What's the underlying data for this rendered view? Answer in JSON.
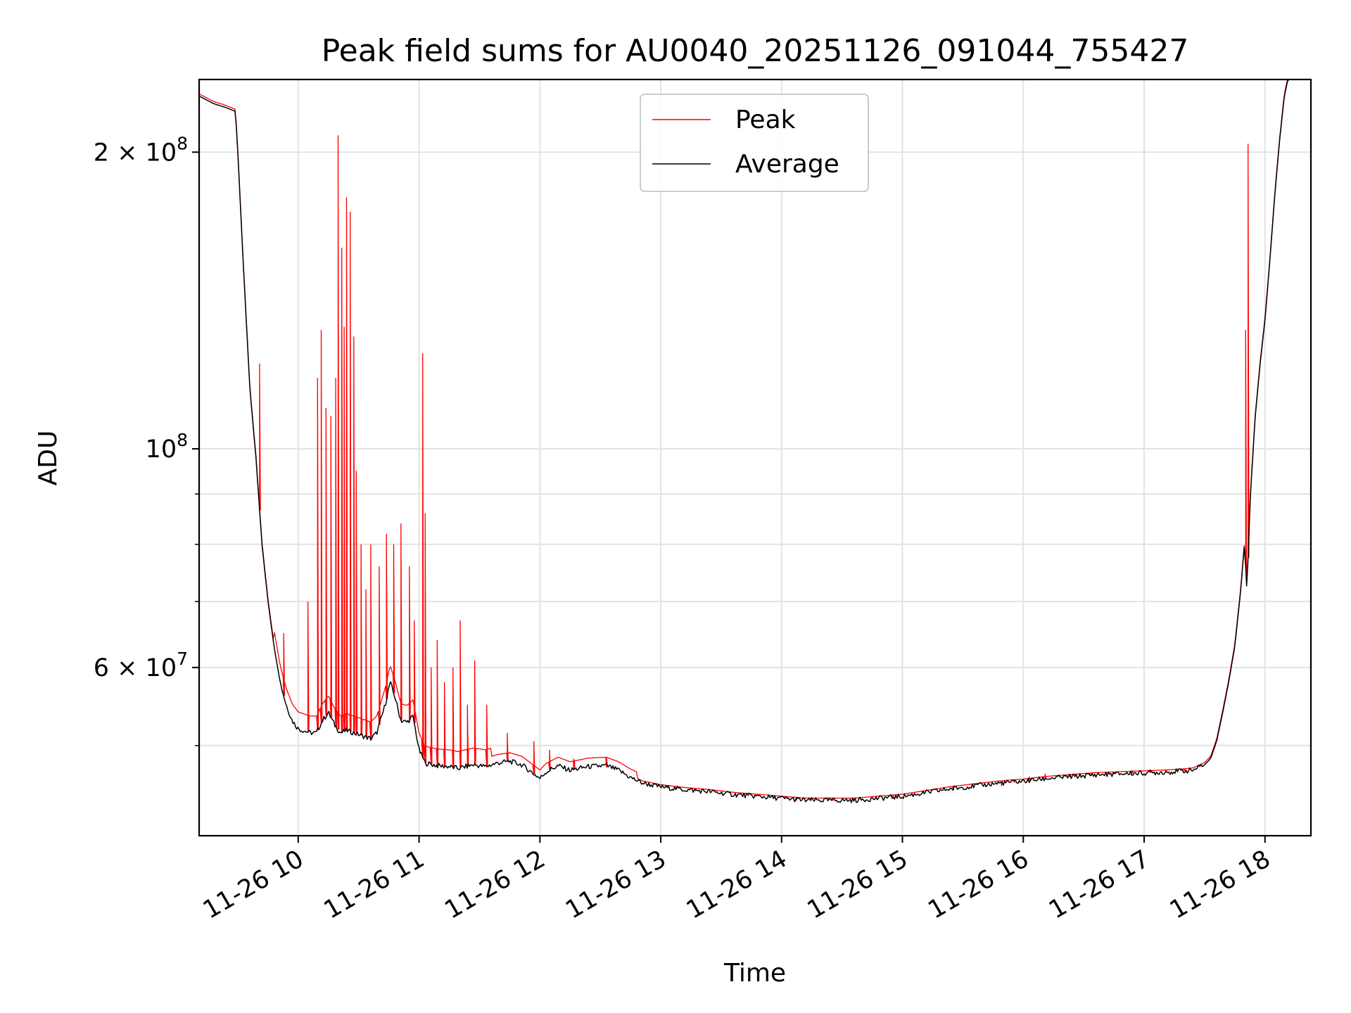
{
  "chart_data": {
    "type": "line",
    "title": "Peak field sums for AU0040_20251126_091044_755427",
    "xlabel": "Time",
    "ylabel": "ADU",
    "yscale": "log",
    "ylim": [
      40500000,
      237000000
    ],
    "xlim_hours": [
      9.18,
      18.38
    ],
    "grid": true,
    "legend_position": "top-center",
    "x_ticks": [
      {
        "hour": 10,
        "label": "11-26 10"
      },
      {
        "hour": 11,
        "label": "11-26 11"
      },
      {
        "hour": 12,
        "label": "11-26 12"
      },
      {
        "hour": 13,
        "label": "11-26 13"
      },
      {
        "hour": 14,
        "label": "11-26 14"
      },
      {
        "hour": 15,
        "label": "11-26 15"
      },
      {
        "hour": 16,
        "label": "11-26 16"
      },
      {
        "hour": 17,
        "label": "11-26 17"
      },
      {
        "hour": 18,
        "label": "11-26 18"
      }
    ],
    "y_ticks": [
      {
        "value": 200000000,
        "base": "2 × 10",
        "exp": "8"
      },
      {
        "value": 100000000,
        "base": "10",
        "exp": "8"
      },
      {
        "value": 60000000,
        "base": "6 × 10",
        "exp": "7"
      }
    ],
    "y_minor_ticks": [
      50000000,
      70000000,
      80000000,
      90000000
    ],
    "series": [
      {
        "name": "Peak",
        "color": "#ff0000",
        "baseline_from": "Average",
        "spikes": [
          [
            9.68,
            122000000
          ],
          [
            9.88,
            65000000
          ],
          [
            10.08,
            70000000
          ],
          [
            10.16,
            118000000
          ],
          [
            10.19,
            132000000
          ],
          [
            10.23,
            110000000
          ],
          [
            10.27,
            108000000
          ],
          [
            10.31,
            118000000
          ],
          [
            10.33,
            208000000
          ],
          [
            10.36,
            160000000
          ],
          [
            10.38,
            133000000
          ],
          [
            10.4,
            180000000
          ],
          [
            10.43,
            174000000
          ],
          [
            10.46,
            130000000
          ],
          [
            10.48,
            95000000
          ],
          [
            10.52,
            80000000
          ],
          [
            10.56,
            72000000
          ],
          [
            10.6,
            80000000
          ],
          [
            10.67,
            76000000
          ],
          [
            10.73,
            82000000
          ],
          [
            10.79,
            80000000
          ],
          [
            10.85,
            84000000
          ],
          [
            10.92,
            76000000
          ],
          [
            10.96,
            67000000
          ],
          [
            11.03,
            125000000
          ],
          [
            11.05,
            86000000
          ],
          [
            11.1,
            60000000
          ],
          [
            11.15,
            64000000
          ],
          [
            11.21,
            58000000
          ],
          [
            11.28,
            60000000
          ],
          [
            11.34,
            67000000
          ],
          [
            11.4,
            55000000
          ],
          [
            11.46,
            61000000
          ],
          [
            11.56,
            55000000
          ],
          [
            11.73,
            51500000
          ],
          [
            11.95,
            50500000
          ],
          [
            12.08,
            49500000
          ],
          [
            12.28,
            48500000
          ],
          [
            12.55,
            47500000
          ],
          [
            13.28,
            45200000
          ],
          [
            13.72,
            44500000
          ],
          [
            14.12,
            44000000
          ],
          [
            14.42,
            44000000
          ],
          [
            14.92,
            44300000
          ],
          [
            15.42,
            45000000
          ],
          [
            15.82,
            45500000
          ],
          [
            15.92,
            46000000
          ],
          [
            16.05,
            46500000
          ],
          [
            16.18,
            46800000
          ],
          [
            16.38,
            46800000
          ],
          [
            16.55,
            46800000
          ],
          [
            16.75,
            47000000
          ],
          [
            16.9,
            47200000
          ],
          [
            17.05,
            47300000
          ],
          [
            17.18,
            47300000
          ],
          [
            17.33,
            47300000
          ],
          [
            17.84,
            132000000
          ],
          [
            17.86,
            204000000
          ]
        ]
      },
      {
        "name": "Average",
        "color": "#000000",
        "points": [
          [
            9.18,
            228000000
          ],
          [
            9.3,
            224000000
          ],
          [
            9.4,
            222000000
          ],
          [
            9.48,
            220000000
          ],
          [
            9.5,
            200000000
          ],
          [
            9.55,
            150000000
          ],
          [
            9.6,
            115000000
          ],
          [
            9.65,
            98000000
          ],
          [
            9.7,
            80000000
          ],
          [
            9.75,
            70000000
          ],
          [
            9.8,
            63000000
          ],
          [
            9.85,
            58000000
          ],
          [
            9.9,
            55000000
          ],
          [
            9.95,
            53000000
          ],
          [
            10.0,
            52000000
          ],
          [
            10.1,
            51500000
          ],
          [
            10.15,
            51500000
          ],
          [
            10.2,
            53000000
          ],
          [
            10.25,
            54000000
          ],
          [
            10.3,
            52500000
          ],
          [
            10.35,
            51500000
          ],
          [
            10.4,
            51800000
          ],
          [
            10.5,
            51300000
          ],
          [
            10.6,
            50800000
          ],
          [
            10.65,
            51500000
          ],
          [
            10.72,
            55000000
          ],
          [
            10.76,
            58000000
          ],
          [
            10.8,
            56000000
          ],
          [
            10.85,
            53000000
          ],
          [
            10.9,
            52800000
          ],
          [
            10.95,
            53500000
          ],
          [
            11.0,
            49500000
          ],
          [
            11.05,
            48000000
          ],
          [
            11.15,
            47700000
          ],
          [
            11.25,
            47600000
          ],
          [
            11.32,
            47400000
          ],
          [
            11.45,
            47800000
          ],
          [
            11.55,
            47600000
          ],
          [
            11.65,
            48000000
          ],
          [
            11.75,
            48200000
          ],
          [
            11.85,
            47800000
          ],
          [
            11.95,
            46800000
          ],
          [
            12.0,
            46300000
          ],
          [
            12.05,
            47000000
          ],
          [
            12.15,
            47700000
          ],
          [
            12.25,
            47200000
          ],
          [
            12.4,
            47600000
          ],
          [
            12.55,
            47700000
          ],
          [
            12.65,
            47200000
          ],
          [
            12.75,
            46400000
          ],
          [
            12.85,
            45800000
          ],
          [
            13.0,
            45400000
          ],
          [
            13.2,
            45100000
          ],
          [
            13.4,
            44900000
          ],
          [
            13.6,
            44600000
          ],
          [
            13.8,
            44400000
          ],
          [
            14.0,
            44200000
          ],
          [
            14.2,
            44000000
          ],
          [
            14.4,
            44000000
          ],
          [
            14.6,
            44000000
          ],
          [
            14.8,
            44200000
          ],
          [
            15.0,
            44400000
          ],
          [
            15.2,
            44800000
          ],
          [
            15.4,
            45200000
          ],
          [
            15.6,
            45500000
          ],
          [
            15.8,
            45800000
          ],
          [
            16.0,
            46000000
          ],
          [
            16.2,
            46300000
          ],
          [
            16.4,
            46500000
          ],
          [
            16.6,
            46700000
          ],
          [
            16.8,
            46800000
          ],
          [
            17.0,
            46900000
          ],
          [
            17.2,
            47000000
          ],
          [
            17.4,
            47200000
          ],
          [
            17.5,
            47800000
          ],
          [
            17.55,
            48500000
          ],
          [
            17.6,
            50500000
          ],
          [
            17.65,
            54000000
          ],
          [
            17.7,
            58000000
          ],
          [
            17.75,
            63000000
          ],
          [
            17.8,
            72000000
          ],
          [
            17.83,
            80000000
          ],
          [
            17.85,
            72000000
          ],
          [
            17.88,
            90000000
          ],
          [
            17.92,
            108000000
          ],
          [
            17.96,
            122000000
          ],
          [
            18.0,
            135000000
          ],
          [
            18.04,
            155000000
          ],
          [
            18.08,
            180000000
          ],
          [
            18.12,
            205000000
          ],
          [
            18.16,
            228000000
          ],
          [
            18.2,
            240000000
          ]
        ]
      }
    ]
  }
}
